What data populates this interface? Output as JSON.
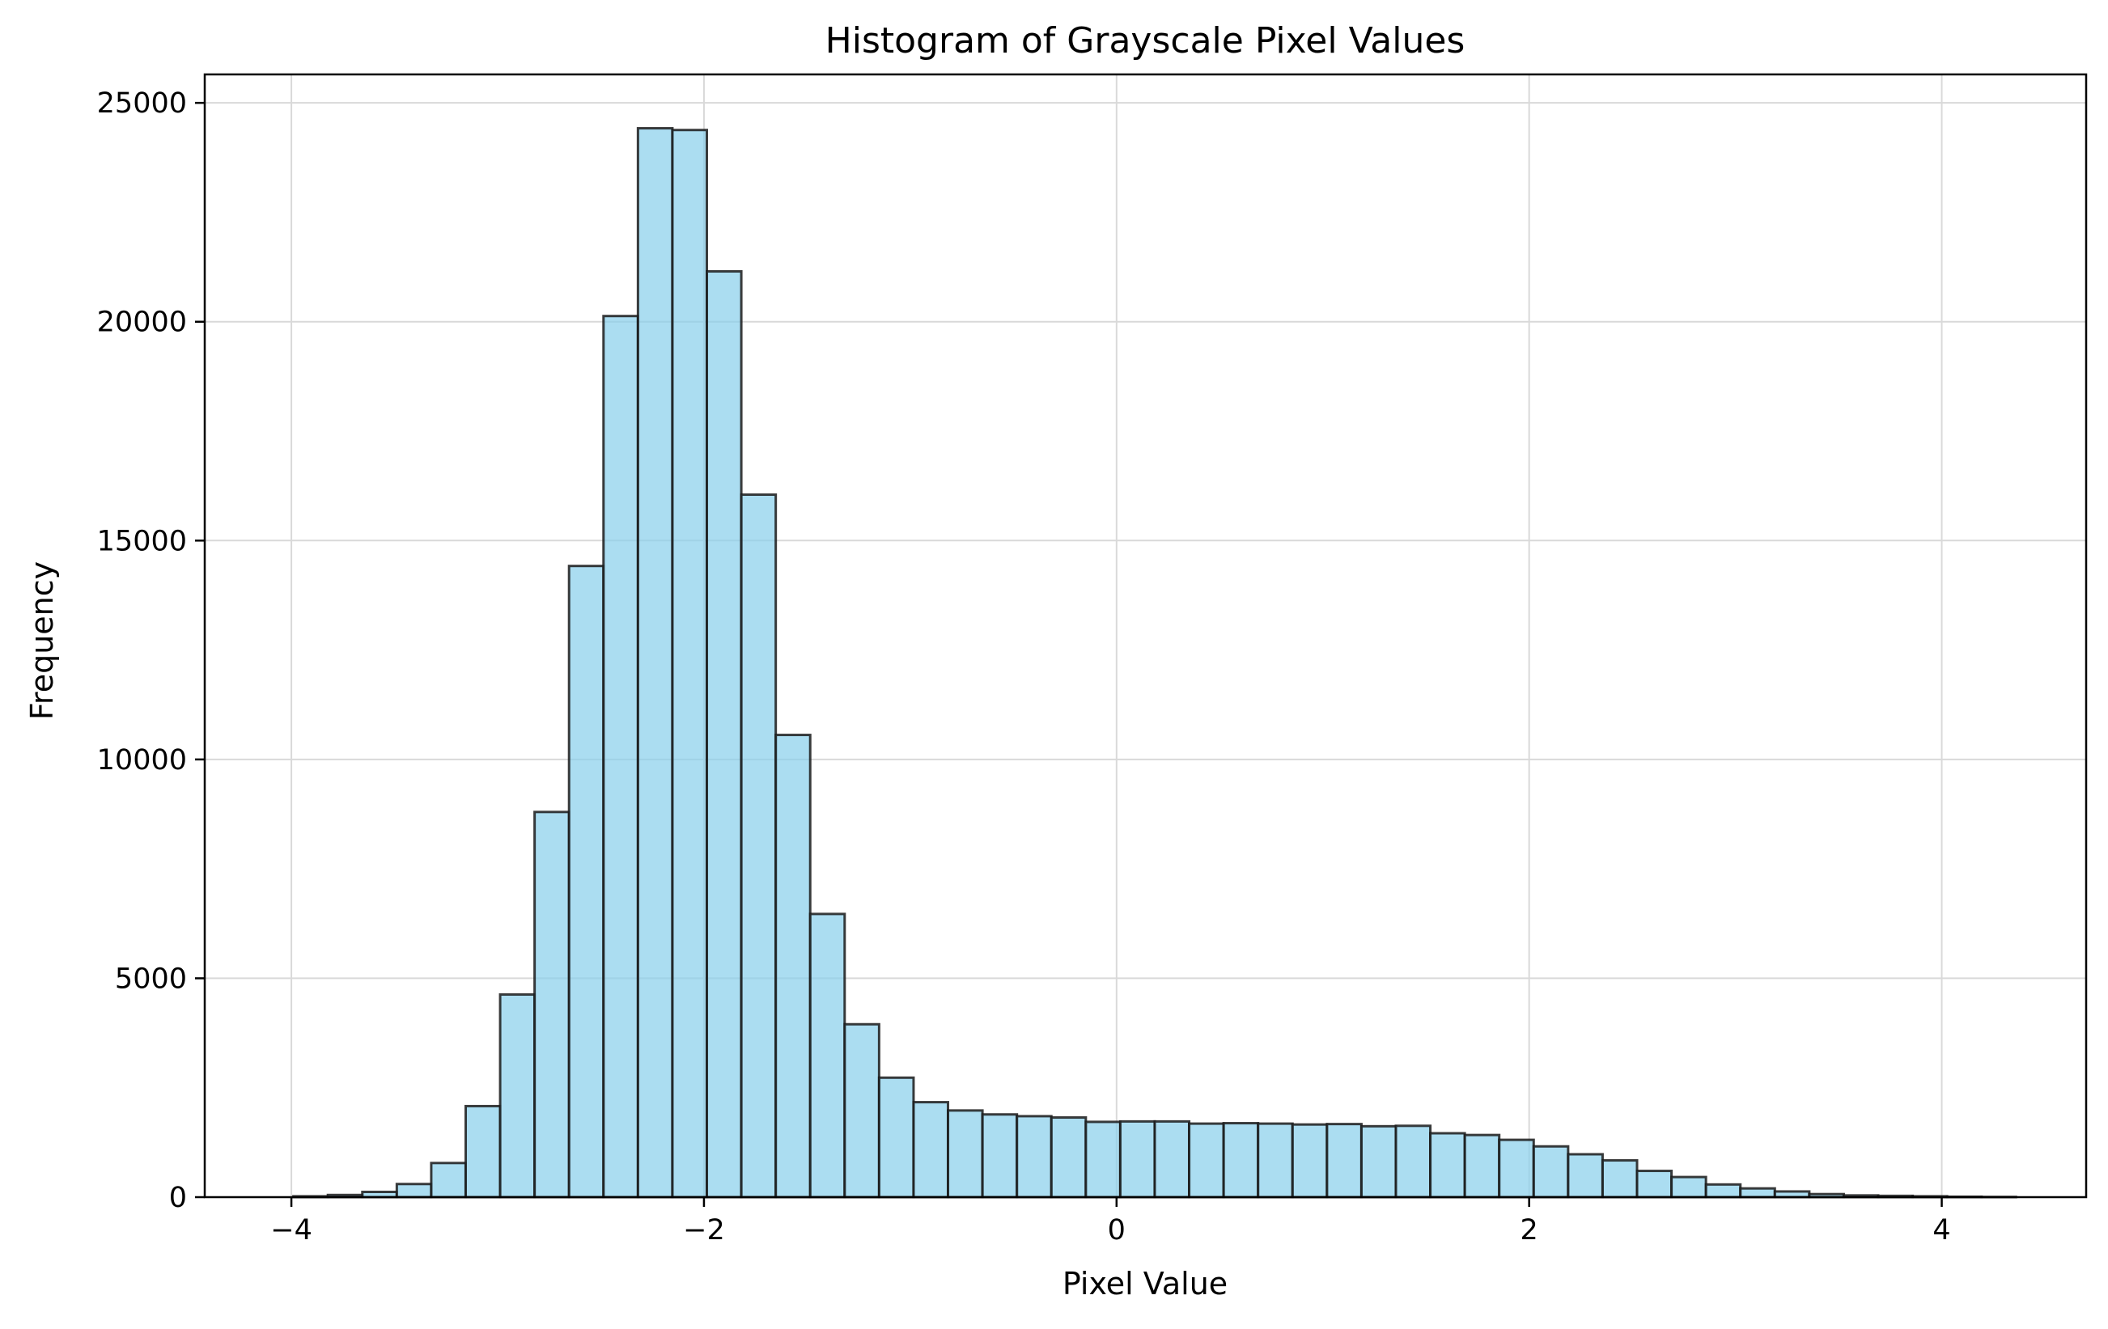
{
  "chart_data": {
    "type": "bar",
    "title": "Histogram of Grayscale Pixel Values",
    "xlabel": "Pixel Value",
    "ylabel": "Frequency",
    "xlim": [
      -4.42,
      4.7
    ],
    "ylim": [
      0,
      25650
    ],
    "xticks": [
      -4,
      -2,
      0,
      2,
      4
    ],
    "xtick_labels": [
      "−4",
      "−2",
      "0",
      "2",
      "4"
    ],
    "yticks": [
      0,
      5000,
      10000,
      15000,
      20000,
      25000
    ],
    "ytick_labels": [
      "0",
      "5000",
      "10000",
      "15000",
      "20000",
      "25000"
    ],
    "grid": true,
    "bar_color": "#87ceeb",
    "edge_color": "#1a1a1a",
    "bin_edges": [
      -3.99,
      -3.823,
      -3.656,
      -3.489,
      -3.322,
      -3.155,
      -2.988,
      -2.821,
      -2.654,
      -2.487,
      -2.32,
      -2.153,
      -1.986,
      -1.819,
      -1.652,
      -1.485,
      -1.318,
      -1.151,
      -0.984,
      -0.817,
      -0.65,
      -0.483,
      -0.316,
      -0.149,
      0.018,
      0.185,
      0.352,
      0.519,
      0.686,
      0.853,
      1.02,
      1.187,
      1.354,
      1.521,
      1.688,
      1.855,
      2.022,
      2.189,
      2.356,
      2.523,
      2.69,
      2.857,
      3.024,
      3.191,
      3.358,
      3.525,
      3.692,
      3.859,
      4.026,
      4.193,
      4.36
    ],
    "counts": [
      20,
      50,
      120,
      300,
      780,
      2080,
      4630,
      8800,
      14420,
      20130,
      24420,
      24380,
      21150,
      16050,
      10560,
      6470,
      3950,
      2730,
      2170,
      1980,
      1890,
      1850,
      1820,
      1720,
      1730,
      1730,
      1680,
      1690,
      1680,
      1660,
      1670,
      1620,
      1630,
      1460,
      1420,
      1310,
      1160,
      980,
      840,
      600,
      460,
      290,
      200,
      130,
      70,
      40,
      30,
      20,
      10,
      5
    ]
  }
}
